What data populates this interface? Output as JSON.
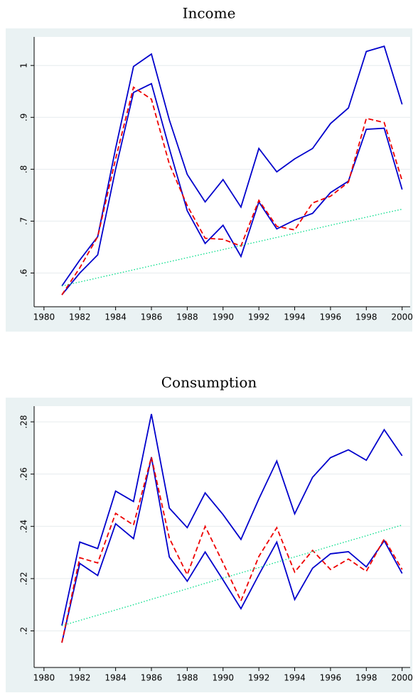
{
  "chart_data": [
    {
      "type": "line",
      "title": "Income",
      "x": [
        1981,
        1982,
        1983,
        1984,
        1985,
        1986,
        1987,
        1988,
        1989,
        1990,
        1991,
        1992,
        1993,
        1994,
        1995,
        1996,
        1997,
        1998,
        1999,
        2000
      ],
      "series": [
        {
          "color": "#0000cc",
          "style": "solid",
          "values": [
            0.575,
            0.625,
            0.67,
            0.84,
            0.998,
            1.022,
            0.895,
            0.79,
            0.737,
            0.78,
            0.727,
            0.84,
            0.795,
            0.82,
            0.84,
            0.888,
            0.918,
            1.027,
            1.037,
            0.925
          ]
        },
        {
          "color": "#0000cc",
          "style": "solid",
          "values": [
            0.558,
            0.6,
            0.635,
            0.8,
            0.948,
            0.965,
            0.84,
            0.72,
            0.657,
            0.692,
            0.632,
            0.737,
            0.685,
            0.702,
            0.715,
            0.755,
            0.777,
            0.877,
            0.879,
            0.761
          ]
        },
        {
          "color": "#ee0000",
          "style": "dashed",
          "values": [
            0.558,
            0.61,
            0.67,
            0.82,
            0.958,
            0.935,
            0.81,
            0.73,
            0.667,
            0.665,
            0.652,
            0.74,
            0.69,
            0.683,
            0.735,
            0.748,
            0.775,
            0.898,
            0.89,
            0.778
          ]
        },
        {
          "color": "#00dd88",
          "style": "dotted",
          "values": [
            0.575,
            0.5828,
            0.5906,
            0.5984,
            0.6062,
            0.614,
            0.6218,
            0.6296,
            0.6374,
            0.6452,
            0.653,
            0.6608,
            0.6686,
            0.6764,
            0.6842,
            0.692,
            0.6998,
            0.7076,
            0.7154,
            0.723
          ]
        }
      ],
      "xlim": [
        1979.45,
        2000.45
      ],
      "xticks": [
        1980,
        1982,
        1984,
        1986,
        1988,
        1990,
        1992,
        1994,
        1996,
        1998,
        2000
      ],
      "ylim": [
        0.535,
        1.055
      ],
      "yticks": [
        {
          "value": 0.6,
          "label": ".6"
        },
        {
          "value": 0.7,
          "label": ".7"
        },
        {
          "value": 0.8,
          "label": ".8"
        },
        {
          "value": 0.9,
          "label": ".9"
        },
        1
      ],
      "grid": true
    },
    {
      "type": "line",
      "title": "Consumption",
      "x": [
        1981,
        1982,
        1983,
        1984,
        1985,
        1986,
        1987,
        1988,
        1989,
        1990,
        1991,
        1992,
        1993,
        1994,
        1995,
        1996,
        1997,
        1998,
        1999,
        2000
      ],
      "series": [
        {
          "color": "#0000cc",
          "style": "solid",
          "values": [
            0.202,
            0.234,
            0.2315,
            0.2535,
            0.2495,
            0.283,
            0.247,
            0.2395,
            0.2528,
            0.2445,
            0.235,
            0.2505,
            0.265,
            0.2448,
            0.2588,
            0.2663,
            0.2693,
            0.2653,
            0.277,
            0.267
          ]
        },
        {
          "color": "#0000cc",
          "style": "solid",
          "values": [
            0.1955,
            0.2258,
            0.2212,
            0.241,
            0.2353,
            0.2665,
            0.2283,
            0.219,
            0.2302,
            0.2195,
            0.2085,
            0.2215,
            0.234,
            0.212,
            0.224,
            0.2295,
            0.2303,
            0.2245,
            0.2345,
            0.222
          ]
        },
        {
          "color": "#ee0000",
          "style": "dashed",
          "values": [
            0.1955,
            0.228,
            0.226,
            0.245,
            0.2405,
            0.2665,
            0.2355,
            0.2215,
            0.24,
            0.226,
            0.2115,
            0.2285,
            0.2395,
            0.2225,
            0.2308,
            0.2235,
            0.2275,
            0.2228,
            0.2352,
            0.2235
          ]
        },
        {
          "color": "#00dd88",
          "style": "dotted",
          "values": [
            0.202,
            0.204,
            0.206,
            0.208,
            0.21,
            0.2121,
            0.2141,
            0.2161,
            0.2182,
            0.2202,
            0.2222,
            0.2242,
            0.2263,
            0.2283,
            0.2303,
            0.2324,
            0.2344,
            0.2364,
            0.2385,
            0.2405
          ]
        }
      ],
      "xlim": [
        1979.45,
        2000.45
      ],
      "xticks": [
        1980,
        1982,
        1984,
        1986,
        1988,
        1990,
        1992,
        1994,
        1996,
        1998,
        2000
      ],
      "ylim": [
        0.186,
        0.286
      ],
      "yticks": [
        {
          "value": 0.2,
          "label": ".2"
        },
        {
          "value": 0.22,
          "label": ".22"
        },
        {
          "value": 0.24,
          "label": ".24"
        },
        {
          "value": 0.26,
          "label": ".26"
        },
        {
          "value": 0.28,
          "label": ".28"
        }
      ],
      "grid": true
    }
  ]
}
